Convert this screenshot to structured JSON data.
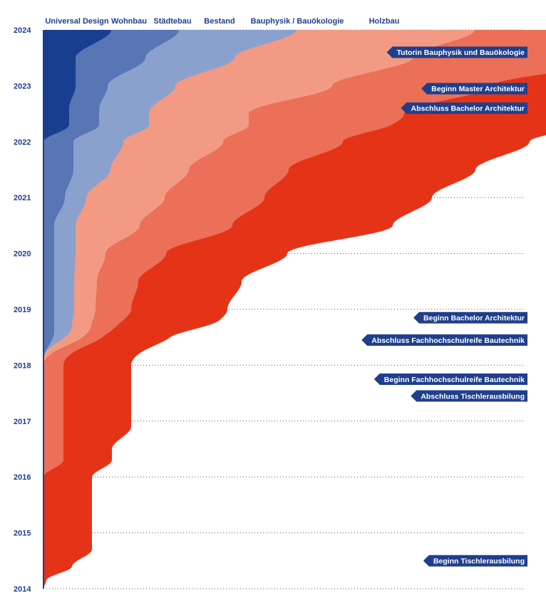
{
  "chart_data": {
    "type": "area",
    "title": "",
    "y_axis": {
      "ticks": [
        "2014",
        "2015",
        "2016",
        "2017",
        "2018",
        "2019",
        "2020",
        "2021",
        "2022",
        "2023",
        "2024"
      ],
      "range": [
        2014,
        2024
      ]
    },
    "categories": [
      {
        "name": "Universal Design",
        "color": "#173e8f"
      },
      {
        "name": "Wohnbau",
        "color": "#5875b4"
      },
      {
        "name": "Städtebau",
        "color": "#8aa1cd"
      },
      {
        "name": "Bestand",
        "color": "#f29a84"
      },
      {
        "name": "Bauphysik / Bauökologie",
        "color": "#ec6f57"
      },
      {
        "name": "Holzbau",
        "color": "#e53318"
      }
    ],
    "series": [
      {
        "name": "Holzbau",
        "start": 2014.0,
        "points": [
          [
            2014.0,
            0
          ],
          [
            2014.15,
            4
          ],
          [
            2014.4,
            40
          ],
          [
            2014.7,
            68
          ],
          [
            2015.0,
            68
          ],
          [
            2016.0,
            68
          ],
          [
            2016.5,
            68
          ],
          [
            2016.9,
            95
          ],
          [
            2017.5,
            95
          ],
          [
            2018.0,
            95
          ],
          [
            2018.5,
            95
          ],
          [
            2018.8,
            135
          ],
          [
            2019.0,
            135
          ],
          [
            2019.5,
            145
          ],
          [
            2020.0,
            170
          ],
          [
            2020.5,
            225
          ],
          [
            2021.0,
            235
          ],
          [
            2021.5,
            262
          ],
          [
            2022.0,
            262
          ],
          [
            2022.5,
            290
          ],
          [
            2022.7,
            370
          ],
          [
            2023.0,
            370
          ],
          [
            2023.3,
            370
          ],
          [
            2023.7,
            560
          ],
          [
            2024.0,
            560
          ]
        ]
      },
      {
        "name": "Bauphysik / Bauökologie",
        "start": 2016.0,
        "points": [
          [
            2016.0,
            0
          ],
          [
            2016.3,
            28
          ],
          [
            2017.0,
            28
          ],
          [
            2018.0,
            28
          ],
          [
            2018.5,
            28
          ],
          [
            2019.0,
            50
          ],
          [
            2019.5,
            58
          ],
          [
            2020.0,
            85
          ],
          [
            2020.5,
            130
          ],
          [
            2021.0,
            140
          ],
          [
            2021.5,
            140
          ],
          [
            2022.0,
            168
          ],
          [
            2022.5,
            218
          ],
          [
            2023.0,
            225
          ],
          [
            2023.5,
            300
          ],
          [
            2024.0,
            300
          ]
        ]
      },
      {
        "name": "Bestand",
        "start": 2018.0,
        "points": [
          [
            2018.0,
            0
          ],
          [
            2018.5,
            25
          ],
          [
            2019.0,
            30
          ],
          [
            2019.5,
            32
          ],
          [
            2020.0,
            42
          ],
          [
            2020.5,
            90
          ],
          [
            2021.0,
            110
          ],
          [
            2021.5,
            110
          ],
          [
            2022.0,
            140
          ],
          [
            2022.5,
            140
          ],
          [
            2023.0,
            220
          ],
          [
            2023.5,
            250
          ],
          [
            2024.0,
            250
          ]
        ]
      },
      {
        "name": "Städtebau",
        "start": 2018.2,
        "points": [
          [
            2018.2,
            0
          ],
          [
            2018.7,
            25
          ],
          [
            2019.0,
            28
          ],
          [
            2019.5,
            28
          ],
          [
            2020.0,
            30
          ],
          [
            2021.0,
            30
          ],
          [
            2021.5,
            52
          ],
          [
            2022.0,
            70
          ],
          [
            2022.5,
            70
          ],
          [
            2023.0,
            95
          ],
          [
            2023.5,
            125
          ],
          [
            2024.0,
            165
          ]
        ]
      },
      {
        "name": "Wohnbau",
        "start": 2018.1,
        "points": [
          [
            2018.1,
            0
          ],
          [
            2018.6,
            15
          ],
          [
            2019.0,
            15
          ],
          [
            2019.5,
            15
          ],
          [
            2020.0,
            15
          ],
          [
            2020.5,
            15
          ],
          [
            2021.0,
            30
          ],
          [
            2021.5,
            42
          ],
          [
            2022.0,
            42
          ],
          [
            2022.5,
            42
          ],
          [
            2023.0,
            45
          ],
          [
            2023.5,
            98
          ],
          [
            2024.0,
            95
          ]
        ]
      },
      {
        "name": "Universal Design",
        "start": 2022.0,
        "points": [
          [
            2022.0,
            0
          ],
          [
            2022.3,
            36
          ],
          [
            2022.6,
            36
          ],
          [
            2023.0,
            45
          ],
          [
            2023.5,
            45
          ],
          [
            2024.0,
            95
          ]
        ]
      }
    ],
    "events": [
      {
        "label": "Tutorin Bauphysik und Bauökologie",
        "year": 2023.6
      },
      {
        "label": "Beginn Master Architektur",
        "year": 2022.95
      },
      {
        "label": "Abschluss Bachelor Architektur",
        "year": 2022.6
      },
      {
        "label": "Beginn Bachelor Architektur",
        "year": 2018.85
      },
      {
        "label": "Abschluss Fachhochschulreife Bautechnik",
        "year": 2018.45
      },
      {
        "label": "Beginn Fachhochschulreife Bautechnik",
        "year": 2017.75
      },
      {
        "label": "Abschluss Tischlerausbilung",
        "year": 2017.45
      },
      {
        "label": "Beginn Tischlerausbilung",
        "year": 2014.5
      }
    ]
  }
}
